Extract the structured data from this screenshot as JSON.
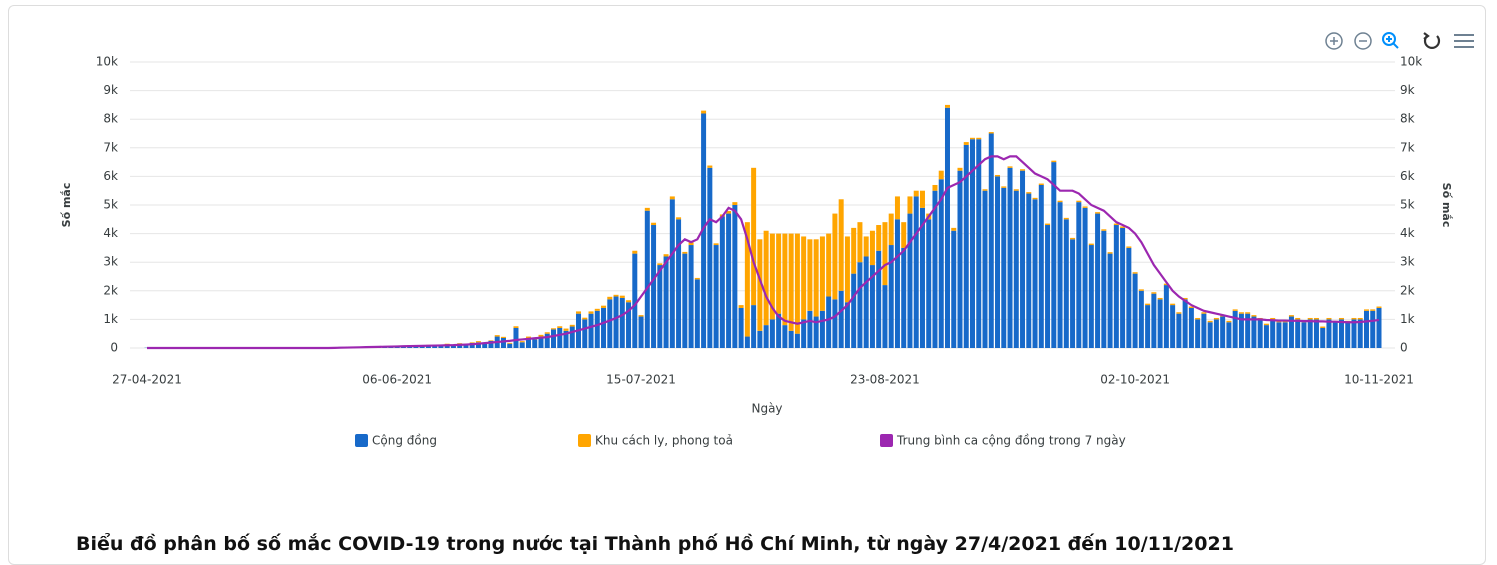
{
  "chart_data": {
    "type": "bar",
    "stacked": true,
    "title": "Biểu đồ phân bố số mắc COVID-19 trong nước tại Thành phố Hồ Chí Minh, từ ngày 27/4/2021 đến 10/11/2021",
    "x_label": "Ngày",
    "y_label": "Số mắc",
    "y2_label": "Số mắc",
    "categories": [
      "27-04-2021",
      null,
      null,
      null,
      null,
      null,
      null,
      null,
      null,
      null,
      null,
      null,
      null,
      null,
      null,
      null,
      null,
      null,
      null,
      null,
      null,
      null,
      null,
      null,
      null,
      null,
      null,
      null,
      null,
      null,
      null,
      null,
      null,
      null,
      null,
      null,
      null,
      null,
      null,
      null,
      "06-06-2021",
      null,
      null,
      null,
      null,
      null,
      null,
      null,
      null,
      null,
      null,
      null,
      null,
      null,
      null,
      null,
      null,
      null,
      null,
      null,
      null,
      null,
      null,
      null,
      null,
      null,
      null,
      null,
      null,
      null,
      null,
      null,
      null,
      null,
      null,
      null,
      null,
      null,
      null,
      "15-07-2021",
      null,
      null,
      null,
      null,
      null,
      null,
      null,
      null,
      null,
      null,
      null,
      null,
      null,
      null,
      null,
      null,
      null,
      null,
      null,
      null,
      null,
      null,
      null,
      null,
      null,
      null,
      null,
      null,
      null,
      null,
      null,
      null,
      null,
      null,
      null,
      null,
      null,
      null,
      "23-08-2021",
      null,
      null,
      null,
      null,
      null,
      null,
      null,
      null,
      null,
      null,
      null,
      null,
      null,
      null,
      null,
      null,
      null,
      null,
      null,
      null,
      null,
      null,
      null,
      null,
      null,
      null,
      null,
      null,
      null,
      null,
      null,
      null,
      null,
      null,
      null,
      null,
      null,
      null,
      null,
      "02-10-2021",
      null,
      null,
      null,
      null,
      null,
      null,
      null,
      null,
      null,
      null,
      null,
      null,
      null,
      null,
      null,
      null,
      null,
      null,
      null,
      null,
      null,
      null,
      null,
      null,
      null,
      null,
      null,
      null,
      null,
      null,
      null,
      null,
      null,
      null,
      null,
      null,
      null,
      null,
      "10-11-2021"
    ],
    "series": [
      {
        "name": "Cộng đồng",
        "color": "#1769c9",
        "values": [
          10,
          0,
          0,
          0,
          0,
          0,
          0,
          0,
          0,
          0,
          0,
          0,
          0,
          0,
          0,
          0,
          0,
          0,
          0,
          0,
          0,
          0,
          0,
          0,
          0,
          0,
          0,
          0,
          0,
          0,
          30,
          40,
          20,
          50,
          40,
          30,
          60,
          50,
          40,
          70,
          60,
          50,
          80,
          70,
          60,
          90,
          100,
          80,
          120,
          100,
          150,
          120,
          180,
          200,
          160,
          250,
          400,
          350,
          150,
          700,
          200,
          350,
          300,
          400,
          500,
          650,
          700,
          600,
          750,
          1200,
          1000,
          1200,
          1300,
          1400,
          1700,
          1800,
          1750,
          1600,
          3300,
          1100,
          4800,
          4300,
          2900,
          3200,
          5200,
          4500,
          3300,
          3600,
          2400,
          8200,
          6300,
          3600,
          4600,
          4700,
          5000,
          1400,
          400,
          1500,
          600,
          800,
          1000,
          1200,
          800,
          600,
          500,
          1000,
          1300,
          1100,
          1300,
          1800,
          1700,
          2000,
          1600,
          2600,
          3000,
          3200,
          2900,
          3400,
          2200,
          3600,
          4500,
          3500,
          4700,
          5300,
          4900,
          4500,
          5500,
          5900,
          8400,
          4100,
          6200,
          7100,
          7300,
          7300,
          5500,
          7500,
          6000,
          5600,
          6300,
          5500,
          6200,
          5400,
          5200,
          5700,
          4300,
          6500,
          5100,
          4500,
          3800,
          5100,
          4900,
          3600,
          4700,
          4100,
          3300,
          4300,
          4200,
          3500,
          2600,
          2000,
          1500,
          1900,
          1700,
          2200,
          1500,
          1200,
          1700,
          1400,
          1000,
          1200,
          900,
          1000,
          1100,
          900,
          1300,
          1200,
          1200,
          1100,
          1000,
          800,
          1000,
          900,
          900,
          1100,
          1000,
          900,
          1000,
          1000,
          700,
          1000,
          900,
          1000,
          900,
          1000,
          1000,
          1300,
          1300,
          1400
        ]
      },
      {
        "name": "Khu cách ly, phong toả",
        "color": "#ffa500",
        "values": [
          0,
          0,
          0,
          0,
          0,
          0,
          0,
          0,
          0,
          0,
          0,
          0,
          0,
          0,
          0,
          0,
          0,
          0,
          0,
          0,
          0,
          0,
          0,
          0,
          0,
          0,
          0,
          0,
          0,
          0,
          0,
          0,
          10,
          0,
          0,
          10,
          0,
          0,
          20,
          0,
          10,
          0,
          20,
          10,
          0,
          20,
          10,
          0,
          30,
          20,
          20,
          30,
          20,
          40,
          30,
          20,
          50,
          40,
          30,
          60,
          40,
          50,
          30,
          60,
          50,
          40,
          60,
          80,
          60,
          80,
          60,
          80,
          70,
          80,
          90,
          60,
          80,
          70,
          100,
          50,
          100,
          80,
          60,
          80,
          100,
          70,
          60,
          90,
          50,
          100,
          80,
          60,
          70,
          90,
          100,
          100,
          4000,
          4800,
          3200,
          3300,
          3000,
          2800,
          3200,
          3400,
          3500,
          2900,
          2500,
          2700,
          2600,
          2200,
          3000,
          3200,
          2300,
          1600,
          1400,
          700,
          1200,
          900,
          2200,
          1100,
          800,
          900,
          600,
          200,
          600,
          200,
          200,
          300,
          100,
          100,
          100,
          100,
          50,
          50,
          50,
          50,
          50,
          50,
          50,
          50,
          50,
          50,
          50,
          50,
          50,
          50,
          50,
          50,
          50,
          50,
          50,
          50,
          50,
          50,
          50,
          50,
          50,
          50,
          50,
          50,
          50,
          50,
          50,
          50,
          50,
          50,
          50,
          50,
          50,
          50,
          50,
          50,
          50,
          50,
          50,
          50,
          50,
          50,
          50,
          50,
          50,
          50,
          50,
          50,
          50,
          50,
          50,
          50,
          50,
          50,
          50,
          50,
          50,
          50,
          50,
          50,
          50,
          50
        ]
      },
      {
        "name": "Trung bình ca cộng đồng trong 7 ngày",
        "color": "#9c27b0",
        "type": "line",
        "values": [
          0,
          0,
          0,
          0,
          0,
          0,
          0,
          0,
          0,
          0,
          0,
          0,
          0,
          0,
          0,
          0,
          0,
          0,
          0,
          0,
          0,
          0,
          0,
          0,
          0,
          0,
          0,
          0,
          0,
          0,
          5,
          10,
          15,
          20,
          25,
          30,
          35,
          40,
          45,
          50,
          55,
          60,
          65,
          70,
          75,
          80,
          85,
          90,
          95,
          100,
          110,
          120,
          130,
          150,
          170,
          190,
          210,
          230,
          250,
          280,
          300,
          320,
          340,
          360,
          380,
          420,
          460,
          500,
          560,
          620,
          680,
          740,
          800,
          880,
          960,
          1050,
          1150,
          1300,
          1500,
          1800,
          2100,
          2400,
          2700,
          3000,
          3300,
          3600,
          3800,
          3700,
          3800,
          4200,
          4500,
          4400,
          4600,
          4900,
          4800,
          4500,
          3800,
          3000,
          2400,
          1800,
          1400,
          1100,
          950,
          900,
          850,
          900,
          950,
          900,
          950,
          1000,
          1100,
          1300,
          1500,
          1800,
          2100,
          2300,
          2500,
          2700,
          2900,
          3000,
          3200,
          3400,
          3700,
          4000,
          4300,
          4600,
          4900,
          5200,
          5600,
          5700,
          5800,
          6000,
          6200,
          6400,
          6600,
          6700,
          6700,
          6600,
          6700,
          6700,
          6500,
          6300,
          6100,
          6000,
          5900,
          5700,
          5500,
          5500,
          5500,
          5400,
          5200,
          5000,
          4900,
          4800,
          4600,
          4400,
          4300,
          4200,
          4000,
          3700,
          3300,
          2900,
          2600,
          2300,
          2000,
          1800,
          1650,
          1500,
          1400,
          1300,
          1250,
          1200,
          1150,
          1100,
          1050,
          1000,
          1000,
          1000,
          1000,
          980,
          970,
          960,
          960,
          950,
          950,
          940,
          940,
          930,
          930,
          920,
          920,
          910,
          900,
          900,
          910,
          930,
          950,
          980
        ]
      }
    ],
    "ylim": [
      0,
      10000
    ],
    "yticks": [
      0,
      {
        "value": 1000,
        "label": "1k"
      },
      {
        "value": 2000,
        "label": "2k"
      },
      {
        "value": 3000,
        "label": "3k"
      },
      {
        "value": 4000,
        "label": "4k"
      },
      {
        "value": 5000,
        "label": "5k"
      },
      {
        "value": 6000,
        "label": "6k"
      },
      {
        "value": 7000,
        "label": "7k"
      },
      {
        "value": 8000,
        "label": "8k"
      },
      {
        "value": 9000,
        "label": "9k"
      },
      {
        "value": 10000,
        "label": "10k"
      }
    ],
    "y2lim": [
      0,
      10000
    ],
    "y2ticks": [
      0,
      {
        "value": 1000,
        "label": "1k"
      },
      {
        "value": 2000,
        "label": "2k"
      },
      {
        "value": 3000,
        "label": "3k"
      },
      {
        "value": 4000,
        "label": "4k"
      },
      {
        "value": 5000,
        "label": "5k"
      },
      {
        "value": 6000,
        "label": "6k"
      },
      {
        "value": 7000,
        "label": "7k"
      },
      {
        "value": 8000,
        "label": "8k"
      },
      {
        "value": 9000,
        "label": "9k"
      },
      {
        "value": 10000,
        "label": "10k"
      }
    ],
    "grid": true,
    "legend": "bottom"
  }
}
